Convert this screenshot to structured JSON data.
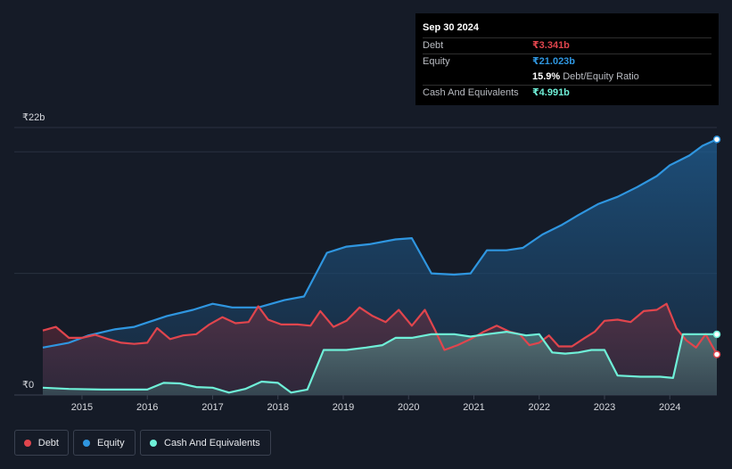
{
  "tooltip": {
    "date": "Sep 30 2024",
    "debt_label": "Debt",
    "debt_value": "₹3.341b",
    "equity_label": "Equity",
    "equity_value": "₹21.023b",
    "ratio_value": "15.9%",
    "ratio_label": "Debt/Equity Ratio",
    "cash_label": "Cash And Equivalents",
    "cash_value": "₹4.991b"
  },
  "legend": {
    "debt": "Debt",
    "equity": "Equity",
    "cash": "Cash And Equivalents"
  },
  "colors": {
    "debt": "#e0454d",
    "equity": "#2f96e0",
    "cash": "#6ff0d8",
    "background": "#151b27",
    "grid": "#2a3140",
    "axis_text": "#d7d9de"
  },
  "chart_data": {
    "type": "area",
    "ylabel_top": "₹22b",
    "ylabel_bottom": "₹0",
    "ylim": [
      0,
      22
    ],
    "xlim": [
      2014.4,
      2024.72
    ],
    "xticks": [
      {
        "value": 2015,
        "label": "2015"
      },
      {
        "value": 2016,
        "label": "2016"
      },
      {
        "value": 2017,
        "label": "2017"
      },
      {
        "value": 2018,
        "label": "2018"
      },
      {
        "value": 2019,
        "label": "2019"
      },
      {
        "value": 2020,
        "label": "2020"
      },
      {
        "value": 2021,
        "label": "2021"
      },
      {
        "value": 2022,
        "label": "2022"
      },
      {
        "value": 2023,
        "label": "2023"
      },
      {
        "value": 2024,
        "label": "2024"
      }
    ],
    "series": [
      {
        "name": "Debt",
        "key": "debt",
        "points": [
          [
            2014.4,
            5.3
          ],
          [
            2014.6,
            5.6
          ],
          [
            2014.8,
            4.7
          ],
          [
            2015.0,
            4.7
          ],
          [
            2015.2,
            4.95
          ],
          [
            2015.4,
            4.6
          ],
          [
            2015.6,
            4.3
          ],
          [
            2015.8,
            4.2
          ],
          [
            2016.0,
            4.3
          ],
          [
            2016.15,
            5.5
          ],
          [
            2016.35,
            4.6
          ],
          [
            2016.55,
            4.9
          ],
          [
            2016.75,
            5.0
          ],
          [
            2016.95,
            5.8
          ],
          [
            2017.15,
            6.4
          ],
          [
            2017.35,
            5.9
          ],
          [
            2017.55,
            6.0
          ],
          [
            2017.7,
            7.3
          ],
          [
            2017.85,
            6.2
          ],
          [
            2018.05,
            5.8
          ],
          [
            2018.3,
            5.8
          ],
          [
            2018.5,
            5.7
          ],
          [
            2018.65,
            6.9
          ],
          [
            2018.85,
            5.6
          ],
          [
            2019.05,
            6.1
          ],
          [
            2019.25,
            7.2
          ],
          [
            2019.45,
            6.5
          ],
          [
            2019.65,
            6.0
          ],
          [
            2019.85,
            7.0
          ],
          [
            2020.05,
            5.7
          ],
          [
            2020.25,
            7.0
          ],
          [
            2020.4,
            5.4
          ],
          [
            2020.55,
            3.7
          ],
          [
            2020.75,
            4.1
          ],
          [
            2020.95,
            4.6
          ],
          [
            2021.15,
            5.2
          ],
          [
            2021.35,
            5.7
          ],
          [
            2021.55,
            5.2
          ],
          [
            2021.7,
            5.0
          ],
          [
            2021.85,
            4.1
          ],
          [
            2022.0,
            4.3
          ],
          [
            2022.15,
            4.9
          ],
          [
            2022.3,
            4.0
          ],
          [
            2022.5,
            4.0
          ],
          [
            2022.7,
            4.7
          ],
          [
            2022.85,
            5.2
          ],
          [
            2023.0,
            6.1
          ],
          [
            2023.2,
            6.2
          ],
          [
            2023.4,
            6.0
          ],
          [
            2023.6,
            6.9
          ],
          [
            2023.8,
            7.0
          ],
          [
            2023.95,
            7.5
          ],
          [
            2024.1,
            5.5
          ],
          [
            2024.25,
            4.5
          ],
          [
            2024.4,
            3.9
          ],
          [
            2024.55,
            5.0
          ],
          [
            2024.72,
            3.341
          ]
        ]
      },
      {
        "name": "Equity",
        "key": "equity",
        "points": [
          [
            2014.4,
            3.9
          ],
          [
            2014.8,
            4.3
          ],
          [
            2015.1,
            4.9
          ],
          [
            2015.5,
            5.4
          ],
          [
            2015.8,
            5.6
          ],
          [
            2016.3,
            6.5
          ],
          [
            2016.7,
            7.0
          ],
          [
            2017.0,
            7.5
          ],
          [
            2017.3,
            7.2
          ],
          [
            2017.7,
            7.2
          ],
          [
            2018.1,
            7.8
          ],
          [
            2018.4,
            8.1
          ],
          [
            2018.75,
            11.7
          ],
          [
            2019.05,
            12.2
          ],
          [
            2019.4,
            12.4
          ],
          [
            2019.8,
            12.8
          ],
          [
            2020.05,
            12.9
          ],
          [
            2020.35,
            10.0
          ],
          [
            2020.7,
            9.9
          ],
          [
            2020.95,
            10.0
          ],
          [
            2021.2,
            11.9
          ],
          [
            2021.5,
            11.9
          ],
          [
            2021.75,
            12.1
          ],
          [
            2022.05,
            13.2
          ],
          [
            2022.35,
            14.0
          ],
          [
            2022.6,
            14.8
          ],
          [
            2022.9,
            15.7
          ],
          [
            2023.2,
            16.3
          ],
          [
            2023.5,
            17.1
          ],
          [
            2023.8,
            18.0
          ],
          [
            2024.0,
            18.9
          ],
          [
            2024.3,
            19.7
          ],
          [
            2024.5,
            20.5
          ],
          [
            2024.72,
            21.023
          ]
        ]
      },
      {
        "name": "Cash And Equivalents",
        "key": "cash",
        "points": [
          [
            2014.4,
            0.6
          ],
          [
            2014.8,
            0.5
          ],
          [
            2015.3,
            0.45
          ],
          [
            2015.8,
            0.45
          ],
          [
            2016.0,
            0.45
          ],
          [
            2016.25,
            1.0
          ],
          [
            2016.5,
            0.95
          ],
          [
            2016.75,
            0.65
          ],
          [
            2017.0,
            0.6
          ],
          [
            2017.25,
            0.2
          ],
          [
            2017.5,
            0.5
          ],
          [
            2017.75,
            1.1
          ],
          [
            2018.0,
            1.0
          ],
          [
            2018.2,
            0.2
          ],
          [
            2018.45,
            0.45
          ],
          [
            2018.7,
            3.7
          ],
          [
            2019.05,
            3.7
          ],
          [
            2019.35,
            3.9
          ],
          [
            2019.6,
            4.1
          ],
          [
            2019.8,
            4.7
          ],
          [
            2020.05,
            4.7
          ],
          [
            2020.35,
            5.0
          ],
          [
            2020.7,
            5.0
          ],
          [
            2020.95,
            4.8
          ],
          [
            2021.2,
            5.0
          ],
          [
            2021.5,
            5.2
          ],
          [
            2021.8,
            4.9
          ],
          [
            2022.0,
            5.0
          ],
          [
            2022.2,
            3.5
          ],
          [
            2022.4,
            3.4
          ],
          [
            2022.6,
            3.5
          ],
          [
            2022.8,
            3.7
          ],
          [
            2023.0,
            3.7
          ],
          [
            2023.2,
            1.6
          ],
          [
            2023.55,
            1.5
          ],
          [
            2023.85,
            1.5
          ],
          [
            2024.05,
            1.4
          ],
          [
            2024.2,
            5.0
          ],
          [
            2024.45,
            5.0
          ],
          [
            2024.6,
            5.0
          ],
          [
            2024.72,
            4.991
          ]
        ]
      }
    ],
    "grid": true,
    "legend_position": "bottom-left"
  }
}
